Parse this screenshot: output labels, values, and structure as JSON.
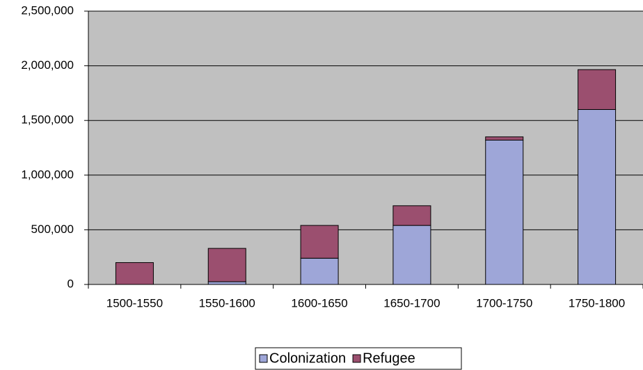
{
  "chart_data": {
    "type": "bar",
    "stacked": true,
    "categories": [
      "1500-1550",
      "1550-1600",
      "1600-1650",
      "1650-1700",
      "1700-1750",
      "1750-1800"
    ],
    "series": [
      {
        "name": "Colonization",
        "color": "#9ea6d8",
        "values": [
          0,
          25000,
          240000,
          540000,
          1320000,
          1600000
        ]
      },
      {
        "name": "Refugee",
        "color": "#9b4f6f",
        "values": [
          200000,
          305000,
          300000,
          180000,
          30000,
          365000
        ]
      }
    ],
    "ylim": [
      0,
      2500000
    ],
    "yticks": [
      0,
      {
        "value": 500000,
        "label": "500,000"
      },
      {
        "value": 1000000,
        "label": "1,000,000"
      },
      {
        "value": 1500000,
        "label": "1,500,000"
      },
      {
        "value": 2000000,
        "label": "2,000,000"
      },
      {
        "value": 2500000,
        "label": "2,500,000"
      }
    ],
    "grid": true,
    "legend": "bottom"
  }
}
